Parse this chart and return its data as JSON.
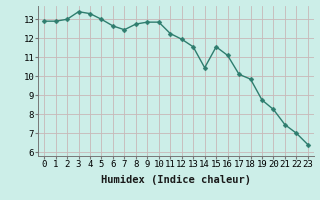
{
  "xlabel": "Humidex (Indice chaleur)",
  "ylabel": "",
  "x": [
    0,
    1,
    2,
    3,
    4,
    5,
    6,
    7,
    8,
    9,
    10,
    11,
    12,
    13,
    14,
    15,
    16,
    17,
    18,
    19,
    20,
    21,
    22,
    23
  ],
  "y": [
    12.9,
    12.9,
    13.0,
    13.4,
    13.3,
    13.0,
    12.65,
    12.45,
    12.75,
    12.85,
    12.85,
    12.25,
    11.95,
    11.55,
    10.45,
    11.55,
    11.1,
    10.1,
    9.85,
    8.75,
    8.25,
    7.45,
    7.0,
    6.4
  ],
  "line_color": "#2e7d6e",
  "marker_color": "#2e7d6e",
  "bg_color": "#cceee8",
  "grid_color": "#c8b8b8",
  "xlim": [
    -0.5,
    23.5
  ],
  "ylim": [
    5.8,
    13.7
  ],
  "yticks": [
    6,
    7,
    8,
    9,
    10,
    11,
    12,
    13
  ],
  "xtick_labels": [
    "0",
    "1",
    "2",
    "3",
    "4",
    "5",
    "6",
    "7",
    "8",
    "9",
    "10",
    "11",
    "12",
    "13",
    "14",
    "15",
    "16",
    "17",
    "18",
    "19",
    "20",
    "21",
    "22",
    "23"
  ],
  "label_fontsize": 7.5,
  "tick_fontsize": 6.5,
  "line_width": 1.0,
  "marker_size": 2.5
}
